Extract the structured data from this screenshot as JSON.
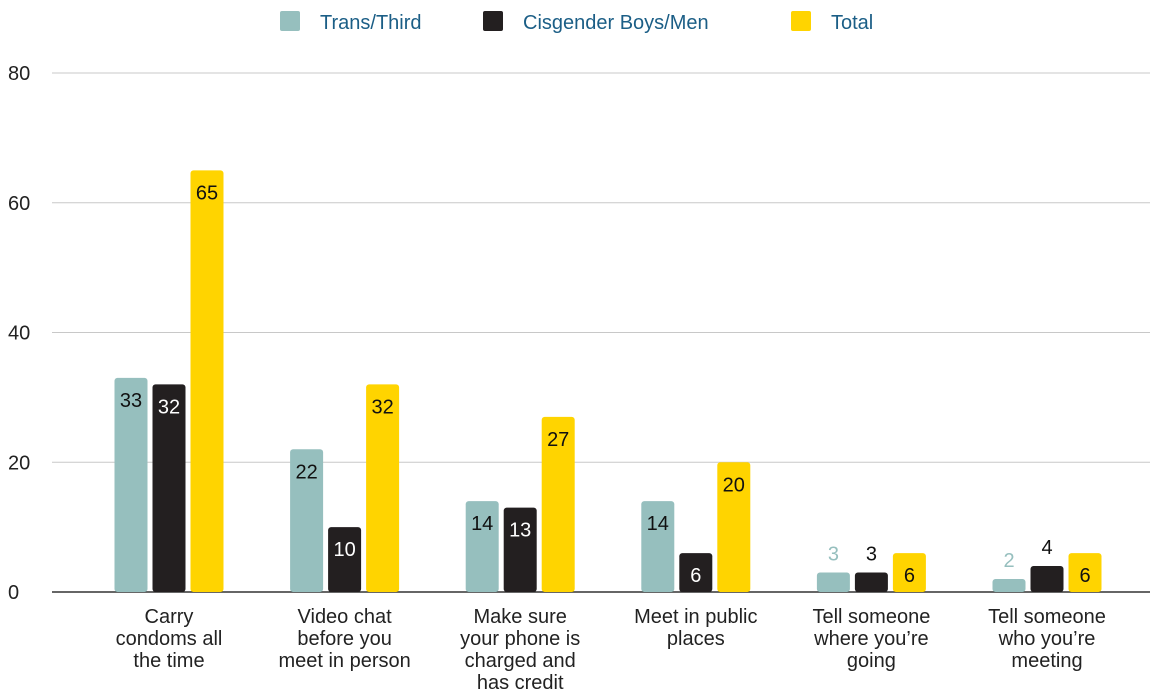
{
  "chart_data": {
    "type": "bar",
    "categories": [
      [
        "Carry",
        "condoms all",
        "the time"
      ],
      [
        "Video chat",
        "before you",
        "meet in person"
      ],
      [
        "Make sure",
        "your phone is",
        "charged and",
        "has credit"
      ],
      [
        "Meet in public",
        "places"
      ],
      [
        "Tell someone",
        "where you’re",
        "going"
      ],
      [
        "Tell someone",
        "who you’re",
        "meeting"
      ]
    ],
    "series": [
      {
        "name": "Trans/Third",
        "color": "#96BFBE",
        "values": [
          33,
          22,
          14,
          14,
          3,
          2
        ]
      },
      {
        "name": "Cisgender Boys/Men",
        "color": "#231F20",
        "values": [
          32,
          10,
          13,
          6,
          3,
          4
        ]
      },
      {
        "name": "Total",
        "color": "#FFD400",
        "values": [
          65,
          32,
          27,
          20,
          6,
          6
        ]
      }
    ],
    "ylim": [
      0,
      80
    ],
    "yticks": [
      0,
      20,
      40,
      60,
      80
    ],
    "grid": true,
    "legend_position": "top-center"
  }
}
